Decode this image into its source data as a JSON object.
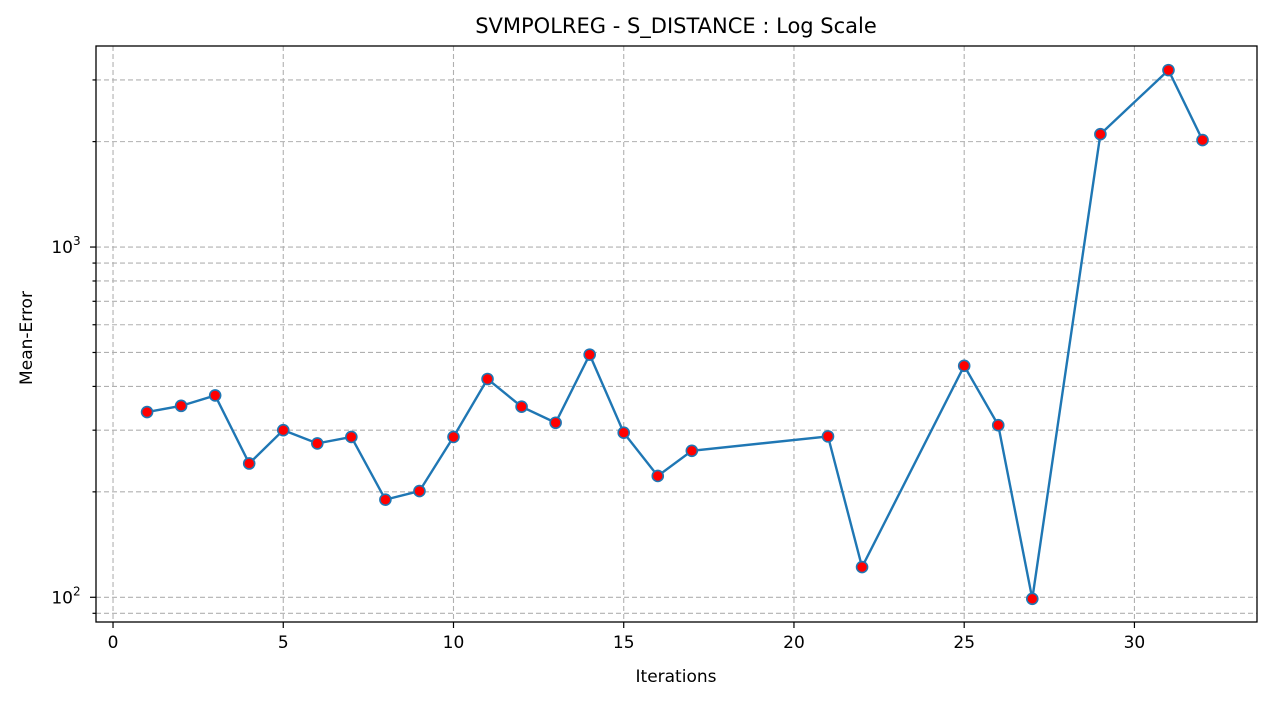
{
  "chart_data": {
    "type": "line",
    "title": "SVMPOLREG - S_DISTANCE : Log Scale",
    "xlabel": "Iterations",
    "ylabel": "Mean-Error",
    "xlim": [
      -0.5,
      33.6
    ],
    "ylim": [
      85,
      3750
    ],
    "y_scale": "log",
    "grid": true,
    "x_ticks": [
      {
        "value": 0,
        "label": "0"
      },
      {
        "value": 5,
        "label": "5"
      },
      {
        "value": 10,
        "label": "10"
      },
      {
        "value": 15,
        "label": "15"
      },
      {
        "value": 20,
        "label": "20"
      },
      {
        "value": 25,
        "label": "25"
      },
      {
        "value": 30,
        "label": "30"
      }
    ],
    "y_major_ticks": [
      {
        "value": 100,
        "base": "10",
        "exp": "2"
      },
      {
        "value": 1000,
        "base": "10",
        "exp": "3"
      }
    ],
    "y_minor_ticks": [
      90,
      200,
      300,
      400,
      500,
      600,
      700,
      800,
      900,
      2000,
      3000
    ],
    "series": [
      {
        "color": "#1f77b4",
        "marker_color": "#ff0000",
        "marker_edge_color": "#1f77b4",
        "x": [
          1,
          2,
          3,
          4,
          5,
          6,
          7,
          8,
          9,
          10,
          11,
          12,
          13,
          14,
          15,
          16,
          17,
          21,
          22,
          25,
          26,
          27,
          29,
          31,
          32
        ],
        "y": [
          338,
          352,
          377,
          241,
          300,
          275,
          287,
          190,
          201,
          287,
          420,
          350,
          315,
          493,
          295,
          222,
          262,
          288,
          122,
          458,
          310,
          99,
          2100,
          3200,
          2020
        ]
      }
    ]
  }
}
